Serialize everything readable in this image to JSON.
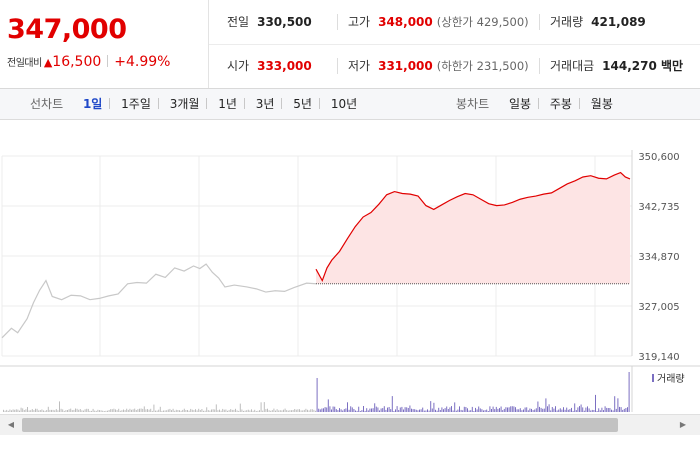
{
  "price": {
    "current": "347,000",
    "change_label": "전일대비",
    "change_symbol": "▲",
    "change_amount": "16,500",
    "change_percent": "+4.99%"
  },
  "stats": {
    "prev_close": {
      "label": "전일",
      "value": "330,500"
    },
    "high": {
      "label": "고가",
      "value": "348,000",
      "sub": "(상한가 429,500)"
    },
    "volume": {
      "label": "거래량",
      "value": "421,089"
    },
    "open": {
      "label": "시가",
      "value": "333,000"
    },
    "low": {
      "label": "저가",
      "value": "331,000",
      "sub": "(하한가 231,500)"
    },
    "trade_value": {
      "label": "거래대금",
      "value": "144,270 백만"
    }
  },
  "line_chart_tabs": {
    "label": "선차트",
    "items": [
      "1일",
      "1주일",
      "3개월",
      "1년",
      "3년",
      "5년",
      "10년"
    ],
    "active": "1일"
  },
  "candle_chart_tabs": {
    "label": "봉차트",
    "items": [
      "일봉",
      "주봉",
      "월봉"
    ]
  },
  "colors": {
    "up": "#e10000",
    "up_fill": "#fde4e4",
    "flat_line": "#c8c8c8",
    "volume": "#7b6fc2",
    "volume_prev": "#bdbdbd",
    "active_tab": "#1f48c8"
  },
  "chart_data": {
    "type": "line",
    "y_ticks": [
      "350,600",
      "342,735",
      "334,870",
      "327,005",
      "319,140"
    ],
    "ylim": [
      319140,
      350600
    ],
    "prev_close": 330500,
    "prev_day_series": [
      [
        0,
        322000
      ],
      [
        0.03,
        323500
      ],
      [
        0.05,
        322800
      ],
      [
        0.08,
        325000
      ],
      [
        0.1,
        327500
      ],
      [
        0.12,
        329500
      ],
      [
        0.14,
        331000
      ],
      [
        0.16,
        328500
      ],
      [
        0.19,
        328000
      ],
      [
        0.22,
        328700
      ],
      [
        0.25,
        328600
      ],
      [
        0.28,
        328000
      ],
      [
        0.31,
        328200
      ],
      [
        0.34,
        328600
      ],
      [
        0.37,
        328900
      ],
      [
        0.4,
        330500
      ],
      [
        0.43,
        330700
      ],
      [
        0.46,
        330600
      ],
      [
        0.49,
        332000
      ],
      [
        0.52,
        331500
      ],
      [
        0.55,
        333000
      ],
      [
        0.58,
        332500
      ],
      [
        0.61,
        333300
      ],
      [
        0.63,
        332900
      ],
      [
        0.65,
        333600
      ],
      [
        0.67,
        332300
      ],
      [
        0.69,
        331400
      ],
      [
        0.71,
        330000
      ],
      [
        0.74,
        330300
      ],
      [
        0.78,
        330000
      ],
      [
        0.81,
        329700
      ],
      [
        0.84,
        329200
      ],
      [
        0.87,
        329400
      ],
      [
        0.9,
        329300
      ],
      [
        0.93,
        329900
      ],
      [
        0.97,
        330600
      ],
      [
        1,
        330500
      ]
    ],
    "today_series": [
      [
        0,
        332800
      ],
      [
        0.02,
        331000
      ],
      [
        0.035,
        333000
      ],
      [
        0.05,
        334200
      ],
      [
        0.075,
        335600
      ],
      [
        0.1,
        337600
      ],
      [
        0.125,
        339500
      ],
      [
        0.15,
        341000
      ],
      [
        0.175,
        341700
      ],
      [
        0.2,
        343000
      ],
      [
        0.225,
        344500
      ],
      [
        0.25,
        345000
      ],
      [
        0.275,
        344700
      ],
      [
        0.3,
        344600
      ],
      [
        0.325,
        344300
      ],
      [
        0.35,
        342800
      ],
      [
        0.375,
        342200
      ],
      [
        0.4,
        342900
      ],
      [
        0.425,
        343600
      ],
      [
        0.45,
        344200
      ],
      [
        0.475,
        344700
      ],
      [
        0.5,
        344500
      ],
      [
        0.525,
        343800
      ],
      [
        0.55,
        343100
      ],
      [
        0.575,
        342800
      ],
      [
        0.6,
        342900
      ],
      [
        0.625,
        343300
      ],
      [
        0.65,
        343800
      ],
      [
        0.675,
        344100
      ],
      [
        0.7,
        344300
      ],
      [
        0.725,
        344600
      ],
      [
        0.75,
        344800
      ],
      [
        0.775,
        345500
      ],
      [
        0.8,
        346200
      ],
      [
        0.825,
        346700
      ],
      [
        0.85,
        347300
      ],
      [
        0.875,
        347500
      ],
      [
        0.9,
        347100
      ],
      [
        0.925,
        347000
      ],
      [
        0.95,
        347600
      ],
      [
        0.97,
        348000
      ],
      [
        0.985,
        347300
      ],
      [
        1,
        347000
      ]
    ],
    "volume_label": "거래량"
  }
}
